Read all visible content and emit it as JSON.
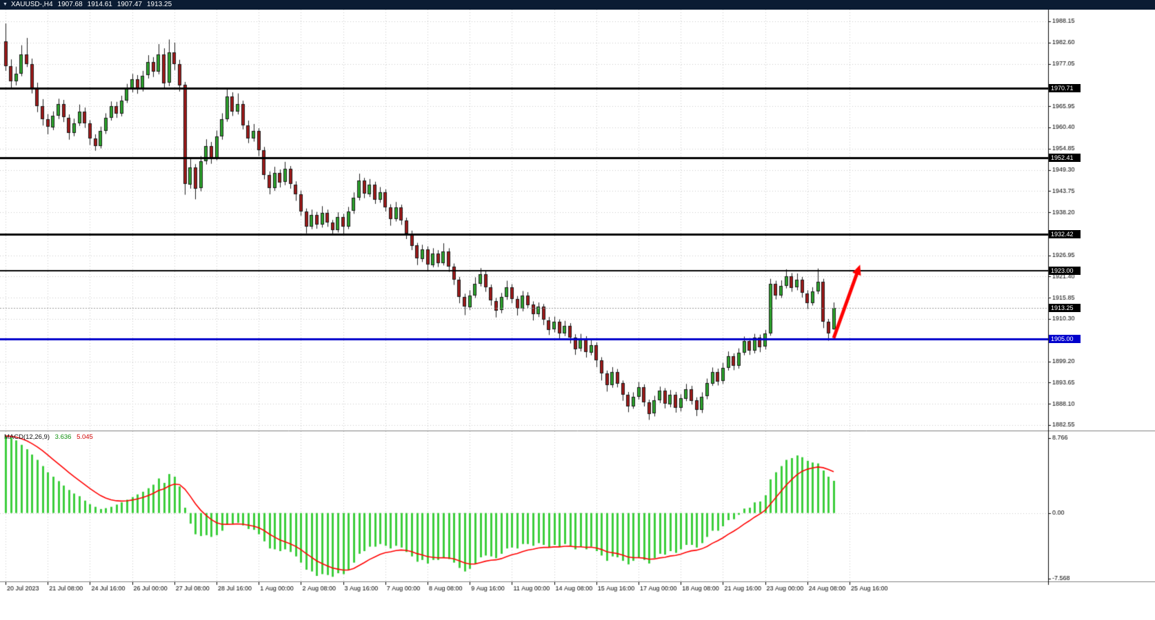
{
  "header": {
    "dropdown_icon": "▼",
    "symbol_period": "XAUUSD-,H4",
    "open": "1907.68",
    "high": "1914.61",
    "low": "1907.47",
    "close": "1913.25"
  },
  "colors": {
    "header_bg": "#0b1c33",
    "header_text": "#ffffff",
    "panel_bg": "#ffffff",
    "grid": "#c9c9c9",
    "bull": "#2da32d",
    "bear": "#9e1a1a",
    "candle_outline": "#1a1a1a",
    "wick": "#1a1a1a",
    "level_black": "#000000",
    "level_blue": "#0000cc",
    "current_price_line": "#999999",
    "macd_histogram": "#3cce3c",
    "macd_signal": "#ff0000",
    "arrow": "#ff0000",
    "axis_text": "#000000"
  },
  "price_axis": {
    "ticks": [
      "1988.15",
      "1982.60",
      "1977.05",
      "1965.95",
      "1960.40",
      "1954.85",
      "1949.30",
      "1943.75",
      "1938.20",
      "1926.95",
      "1921.40",
      "1915.85",
      "1910.30",
      "1899.20",
      "1893.65",
      "1888.10",
      "1882.55"
    ]
  },
  "levels": [
    {
      "label": "1970.71",
      "value": 1970.71,
      "color": "#000000",
      "line_width": 3
    },
    {
      "label": "1952.41",
      "value": 1952.41,
      "color": "#000000",
      "line_width": 3
    },
    {
      "label": "1932.42",
      "value": 1932.42,
      "color": "#000000",
      "line_width": 3
    },
    {
      "label": "1923.00",
      "value": 1923.0,
      "color": "#000000",
      "line_width": 2
    },
    {
      "label": "1905.00",
      "value": 1905.0,
      "color": "#0000cc",
      "line_width": 3
    }
  ],
  "current_price": {
    "label": "1913.25",
    "value": 1913.25
  },
  "time_axis": {
    "bars_per_label": 8,
    "labels": [
      "20 Jul 2023",
      "21 Jul 08:00",
      "24 Jul 16:00",
      "26 Jul 00:00",
      "27 Jul 08:00",
      "28 Jul 16:00",
      "1 Aug 00:00",
      "2 Aug 08:00",
      "3 Aug 16:00",
      "7 Aug 00:00",
      "8 Aug 08:00",
      "9 Aug 16:00",
      "11 Aug 00:00",
      "14 Aug 08:00",
      "15 Aug 16:00",
      "17 Aug 00:00",
      "18 Aug 08:00",
      "21 Aug 16:00",
      "23 Aug 00:00",
      "24 Aug 08:00",
      "25 Aug 16:00"
    ]
  },
  "macd": {
    "label": "MACD(12,26,9)",
    "main_value": "3.636",
    "signal_value": "5.045",
    "axis_max": "8.766",
    "axis_zero": "0.00",
    "axis_min": "-7.568"
  },
  "annotations": {
    "arrow": {
      "from_bar": 157,
      "from_price": 1905.3,
      "to_bar": 162,
      "to_price": 1924.5,
      "color": "#ff0000",
      "width": 5
    }
  },
  "chart_data": {
    "type": "candlestick",
    "symbol": "XAUUSD-",
    "timeframe": "H4",
    "first_label": "20 Jul 2023",
    "last_label": "25 Aug 16:00",
    "price_range": [
      1882.55,
      1988.15
    ],
    "candles_ohlc": [
      [
        1983.0,
        1987.6,
        1975.2,
        1976.5
      ],
      [
        1976.5,
        1978.2,
        1970.8,
        1972.5
      ],
      [
        1972.5,
        1976.3,
        1971.4,
        1974.5
      ],
      [
        1974.5,
        1981.9,
        1973.8,
        1979.5
      ],
      [
        1979.5,
        1983.8,
        1976.2,
        1977.0
      ],
      [
        1977.0,
        1978.4,
        1969.3,
        1970.5
      ],
      [
        1970.5,
        1972.1,
        1964.4,
        1966.0
      ],
      [
        1966.0,
        1967.8,
        1960.9,
        1962.5
      ],
      [
        1962.5,
        1963.9,
        1958.6,
        1960.5
      ],
      [
        1960.5,
        1964.6,
        1959.7,
        1963.5
      ],
      [
        1963.5,
        1967.9,
        1962.6,
        1966.5
      ],
      [
        1966.5,
        1967.6,
        1961.8,
        1963.0
      ],
      [
        1963.0,
        1963.8,
        1957.2,
        1959.0
      ],
      [
        1959.0,
        1962.7,
        1958.1,
        1961.5
      ],
      [
        1961.5,
        1966.4,
        1960.8,
        1964.5
      ],
      [
        1964.5,
        1965.6,
        1960.3,
        1961.5
      ],
      [
        1961.5,
        1962.3,
        1955.8,
        1957.5
      ],
      [
        1957.5,
        1958.6,
        1954.3,
        1955.5
      ],
      [
        1955.5,
        1960.6,
        1954.9,
        1959.5
      ],
      [
        1959.5,
        1964.1,
        1958.7,
        1963.0
      ],
      [
        1963.0,
        1967.2,
        1962.2,
        1966.0
      ],
      [
        1966.0,
        1967.1,
        1962.9,
        1964.0
      ],
      [
        1964.0,
        1968.7,
        1963.3,
        1967.5
      ],
      [
        1967.5,
        1971.8,
        1966.8,
        1970.5
      ],
      [
        1970.5,
        1974.4,
        1969.6,
        1973.0
      ],
      [
        1973.0,
        1974.1,
        1969.2,
        1970.5
      ],
      [
        1970.5,
        1975.2,
        1969.8,
        1974.0
      ],
      [
        1974.0,
        1979.3,
        1973.2,
        1977.5
      ],
      [
        1977.5,
        1978.8,
        1973.6,
        1975.0
      ],
      [
        1975.0,
        1982.2,
        1974.3,
        1979.5
      ],
      [
        1979.5,
        1981.1,
        1970.4,
        1972.0
      ],
      [
        1972.0,
        1983.4,
        1971.2,
        1980.0
      ],
      [
        1980.0,
        1982.6,
        1975.4,
        1977.0
      ],
      [
        1977.0,
        1978.1,
        1969.8,
        1971.5
      ],
      [
        1971.5,
        1972.3,
        1942.8,
        1945.5
      ],
      [
        1945.5,
        1952.6,
        1944.4,
        1950.0
      ],
      [
        1950.0,
        1950.8,
        1941.6,
        1944.5
      ],
      [
        1944.5,
        1952.9,
        1943.7,
        1951.5
      ],
      [
        1951.5,
        1957.3,
        1950.7,
        1955.5
      ],
      [
        1955.5,
        1956.6,
        1950.9,
        1952.5
      ],
      [
        1952.5,
        1959.6,
        1951.8,
        1958.0
      ],
      [
        1958.0,
        1964.1,
        1957.2,
        1962.5
      ],
      [
        1962.5,
        1970.6,
        1961.9,
        1968.5
      ],
      [
        1968.5,
        1969.6,
        1963.4,
        1964.5
      ],
      [
        1964.5,
        1969.3,
        1963.8,
        1966.5
      ],
      [
        1966.5,
        1967.4,
        1959.9,
        1961.0
      ],
      [
        1961.0,
        1962.2,
        1956.3,
        1957.5
      ],
      [
        1957.5,
        1961.3,
        1956.7,
        1959.5
      ],
      [
        1959.5,
        1960.2,
        1952.9,
        1954.5
      ],
      [
        1954.5,
        1955.3,
        1946.8,
        1948.0
      ],
      [
        1948.0,
        1948.9,
        1942.9,
        1944.5
      ],
      [
        1944.5,
        1950.1,
        1943.8,
        1948.5
      ],
      [
        1948.5,
        1949.4,
        1944.7,
        1946.0
      ],
      [
        1946.0,
        1951.4,
        1945.3,
        1949.5
      ],
      [
        1949.5,
        1950.3,
        1944.4,
        1945.5
      ],
      [
        1945.5,
        1946.3,
        1941.2,
        1943.0
      ],
      [
        1943.0,
        1943.9,
        1937.3,
        1938.5
      ],
      [
        1938.5,
        1939.2,
        1932.7,
        1934.5
      ],
      [
        1934.5,
        1938.9,
        1933.8,
        1937.5
      ],
      [
        1937.5,
        1938.3,
        1933.9,
        1935.0
      ],
      [
        1935.0,
        1939.8,
        1934.2,
        1938.0
      ],
      [
        1938.0,
        1938.9,
        1934.4,
        1935.5
      ],
      [
        1935.5,
        1936.2,
        1932.2,
        1933.5
      ],
      [
        1933.5,
        1938.2,
        1932.9,
        1937.0
      ],
      [
        1937.0,
        1937.8,
        1932.6,
        1934.5
      ],
      [
        1934.5,
        1939.6,
        1933.8,
        1938.5
      ],
      [
        1938.5,
        1943.4,
        1937.8,
        1942.0
      ],
      [
        1942.0,
        1948.3,
        1941.3,
        1946.5
      ],
      [
        1946.5,
        1947.2,
        1941.9,
        1943.0
      ],
      [
        1943.0,
        1946.9,
        1942.2,
        1945.5
      ],
      [
        1945.5,
        1946.2,
        1940.4,
        1941.5
      ],
      [
        1941.5,
        1944.8,
        1940.7,
        1943.5
      ],
      [
        1943.5,
        1944.2,
        1938.4,
        1939.5
      ],
      [
        1939.5,
        1940.3,
        1934.7,
        1936.5
      ],
      [
        1936.5,
        1940.9,
        1935.8,
        1939.5
      ],
      [
        1939.5,
        1940.2,
        1934.9,
        1936.0
      ],
      [
        1936.0,
        1936.8,
        1931.2,
        1932.5
      ],
      [
        1932.5,
        1933.4,
        1928.3,
        1929.5
      ],
      [
        1929.5,
        1930.2,
        1924.4,
        1926.0
      ],
      [
        1926.0,
        1929.7,
        1925.2,
        1928.5
      ],
      [
        1928.5,
        1929.3,
        1922.9,
        1924.5
      ],
      [
        1924.5,
        1928.8,
        1923.8,
        1927.5
      ],
      [
        1927.5,
        1928.3,
        1923.9,
        1925.0
      ],
      [
        1925.0,
        1930.1,
        1924.3,
        1928.0
      ],
      [
        1928.0,
        1928.8,
        1922.6,
        1924.0
      ],
      [
        1924.0,
        1924.8,
        1919.2,
        1920.5
      ],
      [
        1920.5,
        1921.3,
        1914.4,
        1916.0
      ],
      [
        1916.0,
        1916.9,
        1911.3,
        1913.5
      ],
      [
        1913.5,
        1917.8,
        1912.7,
        1916.5
      ],
      [
        1916.5,
        1921.2,
        1915.8,
        1919.5
      ],
      [
        1919.5,
        1923.6,
        1918.8,
        1922.0
      ],
      [
        1922.0,
        1922.9,
        1917.4,
        1918.5
      ],
      [
        1918.5,
        1919.3,
        1913.8,
        1915.0
      ],
      [
        1915.0,
        1915.8,
        1910.7,
        1912.5
      ],
      [
        1912.5,
        1917.1,
        1911.8,
        1916.0
      ],
      [
        1916.0,
        1920.3,
        1915.3,
        1918.5
      ],
      [
        1918.5,
        1919.4,
        1914.4,
        1915.5
      ],
      [
        1915.5,
        1916.3,
        1911.2,
        1913.0
      ],
      [
        1913.0,
        1917.6,
        1912.3,
        1916.5
      ],
      [
        1916.5,
        1917.3,
        1913.1,
        1914.0
      ],
      [
        1914.0,
        1914.9,
        1909.9,
        1911.5
      ],
      [
        1911.5,
        1914.6,
        1910.8,
        1913.5
      ],
      [
        1913.5,
        1914.2,
        1908.7,
        1910.0
      ],
      [
        1910.0,
        1910.8,
        1906.1,
        1907.5
      ],
      [
        1907.5,
        1910.9,
        1906.8,
        1909.5
      ],
      [
        1909.5,
        1910.2,
        1905.1,
        1906.5
      ],
      [
        1906.5,
        1909.8,
        1905.8,
        1908.5
      ],
      [
        1908.5,
        1909.2,
        1903.9,
        1905.5
      ],
      [
        1905.5,
        1906.3,
        1900.9,
        1902.5
      ],
      [
        1902.5,
        1906.4,
        1901.8,
        1905.0
      ],
      [
        1905.0,
        1905.8,
        1900.2,
        1901.5
      ],
      [
        1901.5,
        1904.7,
        1900.8,
        1903.5
      ],
      [
        1903.5,
        1904.2,
        1897.7,
        1899.5
      ],
      [
        1899.5,
        1900.3,
        1894.2,
        1896.0
      ],
      [
        1896.0,
        1896.8,
        1891.3,
        1893.0
      ],
      [
        1893.0,
        1897.7,
        1892.3,
        1896.5
      ],
      [
        1896.5,
        1897.2,
        1892.4,
        1893.5
      ],
      [
        1893.5,
        1894.2,
        1888.9,
        1890.5
      ],
      [
        1890.5,
        1891.2,
        1885.9,
        1887.5
      ],
      [
        1887.5,
        1891.1,
        1886.8,
        1890.0
      ],
      [
        1890.0,
        1893.8,
        1889.2,
        1892.5
      ],
      [
        1892.5,
        1893.2,
        1887.4,
        1888.5
      ],
      [
        1888.5,
        1889.2,
        1883.9,
        1885.5
      ],
      [
        1885.5,
        1890.2,
        1884.8,
        1889.0
      ],
      [
        1889.0,
        1892.6,
        1888.3,
        1891.5
      ],
      [
        1891.5,
        1892.2,
        1886.9,
        1888.0
      ],
      [
        1888.0,
        1891.7,
        1887.2,
        1890.5
      ],
      [
        1890.5,
        1891.2,
        1885.8,
        1887.0
      ],
      [
        1887.0,
        1890.6,
        1886.1,
        1889.5
      ],
      [
        1889.5,
        1893.3,
        1888.8,
        1892.0
      ],
      [
        1892.0,
        1892.8,
        1887.9,
        1889.0
      ],
      [
        1889.0,
        1889.8,
        1884.9,
        1886.5
      ],
      [
        1886.5,
        1891.1,
        1885.7,
        1890.0
      ],
      [
        1890.0,
        1894.7,
        1889.3,
        1893.5
      ],
      [
        1893.5,
        1897.6,
        1892.8,
        1896.5
      ],
      [
        1896.5,
        1897.3,
        1892.9,
        1894.0
      ],
      [
        1894.0,
        1898.8,
        1893.3,
        1897.5
      ],
      [
        1897.5,
        1901.8,
        1896.8,
        1900.5
      ],
      [
        1900.5,
        1901.3,
        1896.9,
        1898.0
      ],
      [
        1898.0,
        1902.6,
        1897.3,
        1901.5
      ],
      [
        1901.5,
        1905.7,
        1900.8,
        1904.5
      ],
      [
        1904.5,
        1905.3,
        1900.9,
        1902.0
      ],
      [
        1902.0,
        1906.4,
        1901.3,
        1905.5
      ],
      [
        1905.5,
        1906.2,
        1901.6,
        1903.0
      ],
      [
        1903.0,
        1907.4,
        1902.3,
        1906.5
      ],
      [
        1906.5,
        1920.8,
        1905.9,
        1919.5
      ],
      [
        1919.5,
        1920.3,
        1915.4,
        1916.5
      ],
      [
        1916.5,
        1920.4,
        1915.8,
        1919.0
      ],
      [
        1919.0,
        1923.3,
        1918.3,
        1921.5
      ],
      [
        1921.5,
        1922.3,
        1917.4,
        1918.5
      ],
      [
        1918.5,
        1922.2,
        1917.8,
        1920.5
      ],
      [
        1920.5,
        1921.3,
        1915.9,
        1917.0
      ],
      [
        1917.0,
        1917.8,
        1912.9,
        1914.5
      ],
      [
        1914.5,
        1918.6,
        1913.8,
        1917.5
      ],
      [
        1917.5,
        1923.5,
        1916.8,
        1920.0
      ],
      [
        1920.0,
        1920.8,
        1907.9,
        1909.5
      ],
      [
        1909.5,
        1910.3,
        1904.6,
        1906.5
      ],
      [
        1907.68,
        1914.61,
        1907.47,
        1913.25
      ]
    ],
    "macd_histogram": [
      8.7,
      8.5,
      8.2,
      7.7,
      7.2,
      6.6,
      6.0,
      5.3,
      4.6,
      4.1,
      3.6,
      3.1,
      2.6,
      2.2,
      1.9,
      1.4,
      1.0,
      0.7,
      0.45,
      0.55,
      0.7,
      0.95,
      1.2,
      1.5,
      1.8,
      2.1,
      2.4,
      2.8,
      3.2,
      3.9,
      3.4,
      4.4,
      4.1,
      3.0,
      0.6,
      -1.2,
      -2.4,
      -2.6,
      -2.5,
      -2.7,
      -2.5,
      -2.0,
      -1.3,
      -1.2,
      -1.1,
      -1.4,
      -1.8,
      -1.9,
      -2.4,
      -3.2,
      -4.0,
      -4.1,
      -4.3,
      -4.1,
      -4.4,
      -4.9,
      -5.6,
      -6.4,
      -6.6,
      -7.1,
      -6.9,
      -7.0,
      -7.2,
      -6.8,
      -6.9,
      -6.4,
      -5.6,
      -4.6,
      -4.3,
      -3.8,
      -3.8,
      -3.5,
      -3.7,
      -4.0,
      -3.7,
      -3.9,
      -4.4,
      -4.9,
      -5.5,
      -5.3,
      -5.7,
      -5.3,
      -5.3,
      -5.0,
      -5.2,
      -5.6,
      -6.2,
      -6.6,
      -6.3,
      -5.7,
      -5.0,
      -4.8,
      -4.9,
      -5.1,
      -4.6,
      -4.0,
      -3.9,
      -4.0,
      -3.5,
      -3.5,
      -3.7,
      -3.4,
      -3.6,
      -3.9,
      -3.6,
      -3.8,
      -3.5,
      -3.7,
      -4.1,
      -3.8,
      -4.1,
      -3.8,
      -4.3,
      -4.8,
      -5.4,
      -4.9,
      -5.0,
      -5.4,
      -5.8,
      -5.4,
      -5.0,
      -5.3,
      -5.7,
      -5.1,
      -4.6,
      -4.7,
      -4.3,
      -4.5,
      -4.1,
      -3.6,
      -3.6,
      -3.9,
      -3.4,
      -2.7,
      -2.0,
      -2.0,
      -1.5,
      -0.8,
      -0.7,
      -0.2,
      0.5,
      0.6,
      1.2,
      1.3,
      2.0,
      3.8,
      4.6,
      5.3,
      6.0,
      6.2,
      6.5,
      6.3,
      5.9,
      5.7,
      5.6,
      4.8,
      4.1,
      3.636
    ]
  }
}
